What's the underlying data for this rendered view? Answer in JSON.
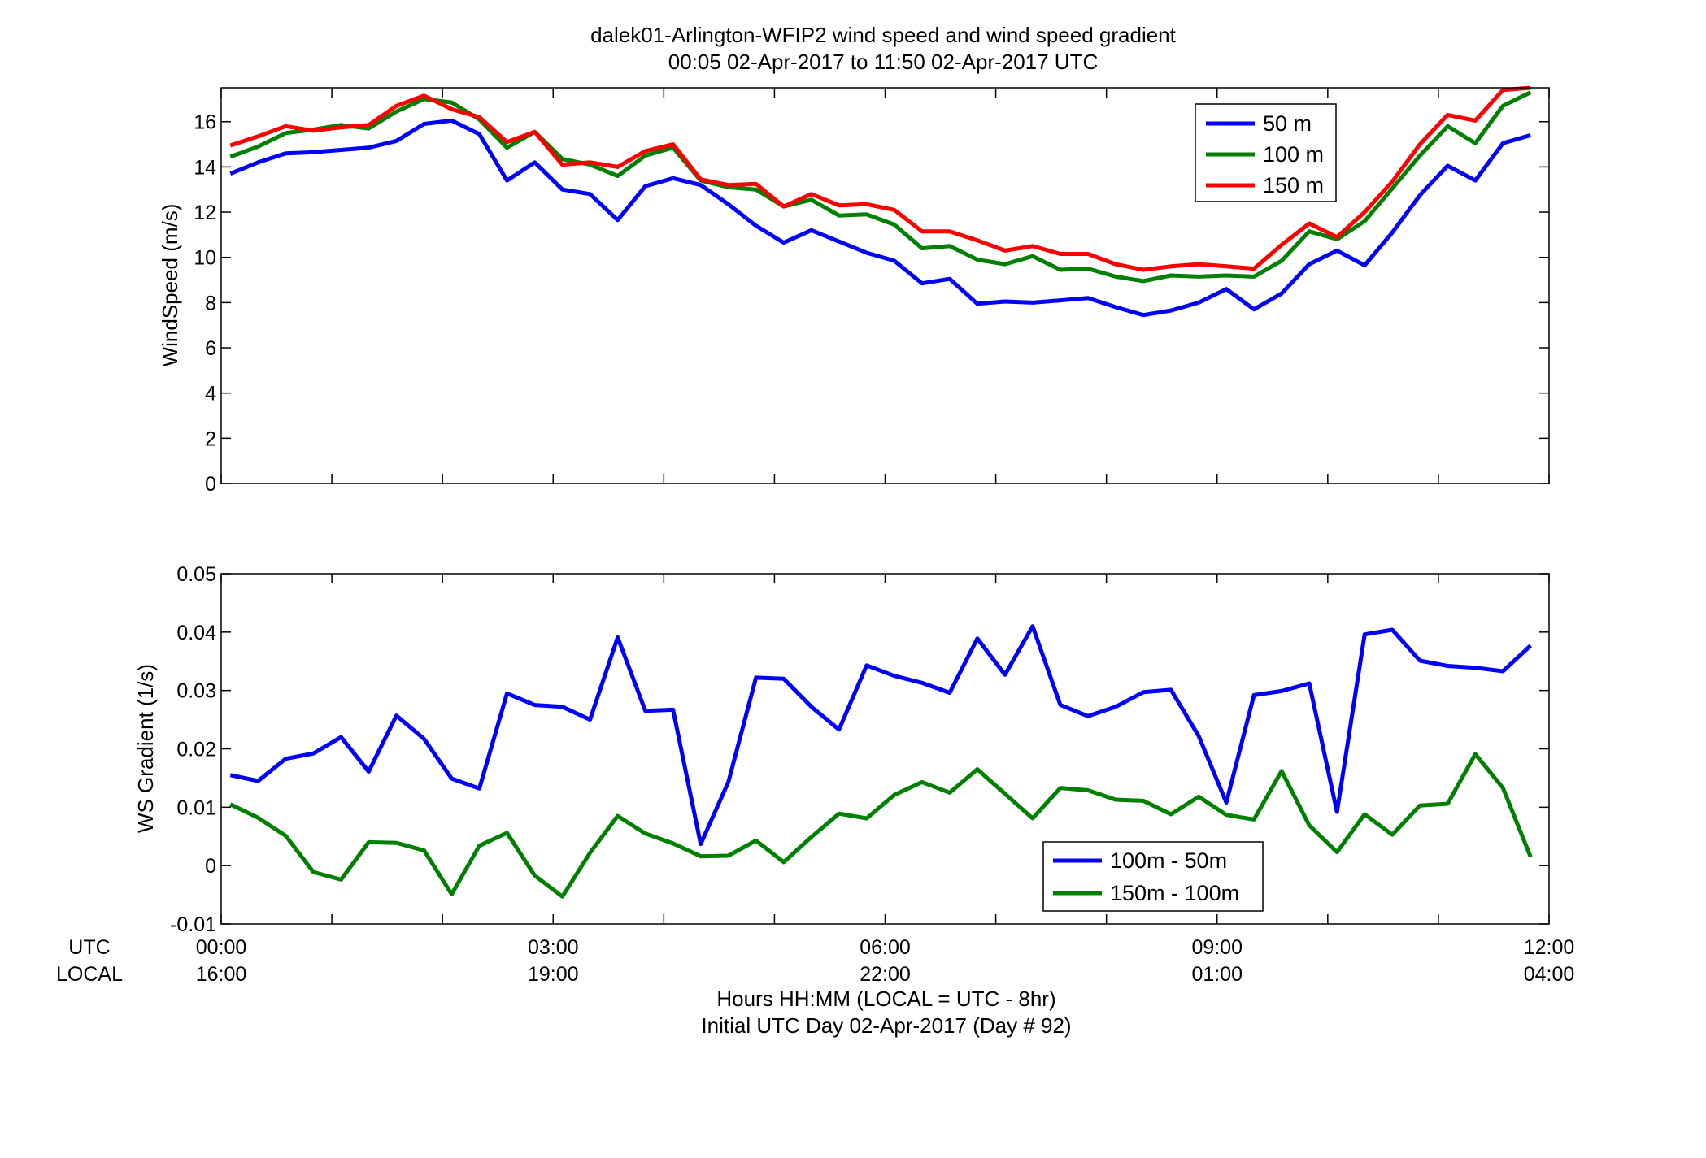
{
  "figure": {
    "title_line1": "dalek01-Arlington-WFIP2  wind speed and wind speed gradient",
    "title_line2": "00:05 02-Apr-2017 to 11:50 02-Apr-2017  UTC",
    "xlabel_line1": "Hours HH:MM  (LOCAL = UTC - 8hr)",
    "xlabel_line2": "Initial UTC Day 02-Apr-2017 (Day # 92)",
    "utc_row_label": "UTC",
    "local_row_label": "LOCAL",
    "utc_ticks": [
      "00:00",
      "03:00",
      "06:00",
      "09:00",
      "12:00"
    ],
    "local_ticks": [
      "16:00",
      "19:00",
      "22:00",
      "01:00",
      "04:00"
    ]
  },
  "chart_data": [
    {
      "type": "line",
      "ylabel": "WindSpeed (m/s)",
      "xlim": [
        0,
        12
      ],
      "ylim": [
        0,
        17.5
      ],
      "yticks": [
        0,
        2,
        4,
        6,
        8,
        10,
        12,
        14,
        16
      ],
      "grid": false,
      "legend_position": "top-right",
      "x_start": 0.0833,
      "x_step": 0.25,
      "series": [
        {
          "name": "50 m",
          "color": "#0000ff",
          "values": [
            13.7,
            14.2,
            14.6,
            14.65,
            14.75,
            14.85,
            15.15,
            15.9,
            16.05,
            15.45,
            13.4,
            14.2,
            13.0,
            12.8,
            11.65,
            13.15,
            13.5,
            13.2,
            12.35,
            11.4,
            10.65,
            11.2,
            10.7,
            10.2,
            9.85,
            8.85,
            9.05,
            7.95,
            8.05,
            8.0,
            8.1,
            8.2,
            7.8,
            7.45,
            7.65,
            8.0,
            8.6,
            7.7,
            8.4,
            9.7,
            10.3,
            9.65,
            11.1,
            12.75,
            14.05,
            13.4,
            15.05,
            15.4
          ]
        },
        {
          "name": "100 m",
          "color": "#008000",
          "values": [
            14.45,
            14.9,
            15.5,
            15.65,
            15.85,
            15.7,
            16.45,
            17.0,
            16.85,
            16.1,
            14.85,
            15.55,
            14.35,
            14.1,
            13.6,
            14.5,
            14.85,
            13.4,
            13.1,
            13.0,
            12.25,
            12.55,
            11.85,
            11.9,
            11.45,
            10.4,
            10.5,
            9.9,
            9.7,
            10.05,
            9.45,
            9.5,
            9.15,
            8.95,
            9.2,
            9.15,
            9.2,
            9.15,
            9.85,
            11.15,
            10.8,
            11.6,
            13.05,
            14.5,
            15.8,
            15.05,
            16.7,
            17.3
          ]
        },
        {
          "name": "150 m",
          "color": "#ff0000",
          "values": [
            14.95,
            15.35,
            15.8,
            15.6,
            15.75,
            15.85,
            16.7,
            17.15,
            16.55,
            16.2,
            15.1,
            15.55,
            14.1,
            14.2,
            14.0,
            14.7,
            15.0,
            13.45,
            13.2,
            13.25,
            12.25,
            12.8,
            12.3,
            12.35,
            12.1,
            11.15,
            11.15,
            10.75,
            10.3,
            10.5,
            10.15,
            10.15,
            9.7,
            9.45,
            9.6,
            9.7,
            9.6,
            9.5,
            10.55,
            11.5,
            10.9,
            12.0,
            13.35,
            15.0,
            16.3,
            16.05,
            17.4,
            17.5
          ]
        }
      ]
    },
    {
      "type": "line",
      "ylabel": "WS Gradient (1/s)",
      "xlim": [
        0,
        12
      ],
      "ylim": [
        -0.01,
        0.05
      ],
      "yticks": [
        -0.01,
        0,
        0.01,
        0.02,
        0.03,
        0.04,
        0.05
      ],
      "ytick_labels": [
        "-0.01",
        "0",
        "0.01",
        "0.02",
        "0.03",
        "0.04",
        "0.05"
      ],
      "grid": false,
      "legend_position": "bottom-center",
      "x_start": 0.0833,
      "x_step": 0.25,
      "series": [
        {
          "name": "100m - 50m",
          "color": "#0000ff",
          "values": [
            0.0155,
            0.0145,
            0.0183,
            0.0192,
            0.022,
            0.0161,
            0.0257,
            0.0217,
            0.0149,
            0.0132,
            0.0295,
            0.0275,
            0.0272,
            0.025,
            0.0391,
            0.0265,
            0.0267,
            0.0037,
            0.0143,
            0.0322,
            0.032,
            0.0272,
            0.0233,
            0.0343,
            0.0325,
            0.0313,
            0.0296,
            0.0389,
            0.0327,
            0.041,
            0.0275,
            0.0256,
            0.0272,
            0.0297,
            0.0301,
            0.0222,
            0.0108,
            0.0292,
            0.0299,
            0.0312,
            0.0092,
            0.0396,
            0.0404,
            0.0351,
            0.0342,
            0.0339,
            0.0333,
            0.0377
          ]
        },
        {
          "name": "150m - 100m",
          "color": "#008000",
          "values": [
            0.0105,
            0.0082,
            0.0051,
            -0.0011,
            -0.0024,
            0.004,
            0.0039,
            0.0026,
            -0.0049,
            0.0034,
            0.0056,
            -0.0017,
            -0.0053,
            0.0022,
            0.0085,
            0.0055,
            0.0038,
            0.0016,
            0.0017,
            0.0043,
            0.0006,
            0.0049,
            0.0089,
            0.0081,
            0.0121,
            0.0143,
            0.0125,
            0.0165,
            0.0123,
            0.0081,
            0.0133,
            0.0129,
            0.0113,
            0.0111,
            0.0088,
            0.0118,
            0.0087,
            0.0079,
            0.0162,
            0.0069,
            0.0023,
            0.0088,
            0.0053,
            0.0103,
            0.0106,
            0.0191,
            0.0133,
            0.0015
          ]
        }
      ]
    }
  ]
}
